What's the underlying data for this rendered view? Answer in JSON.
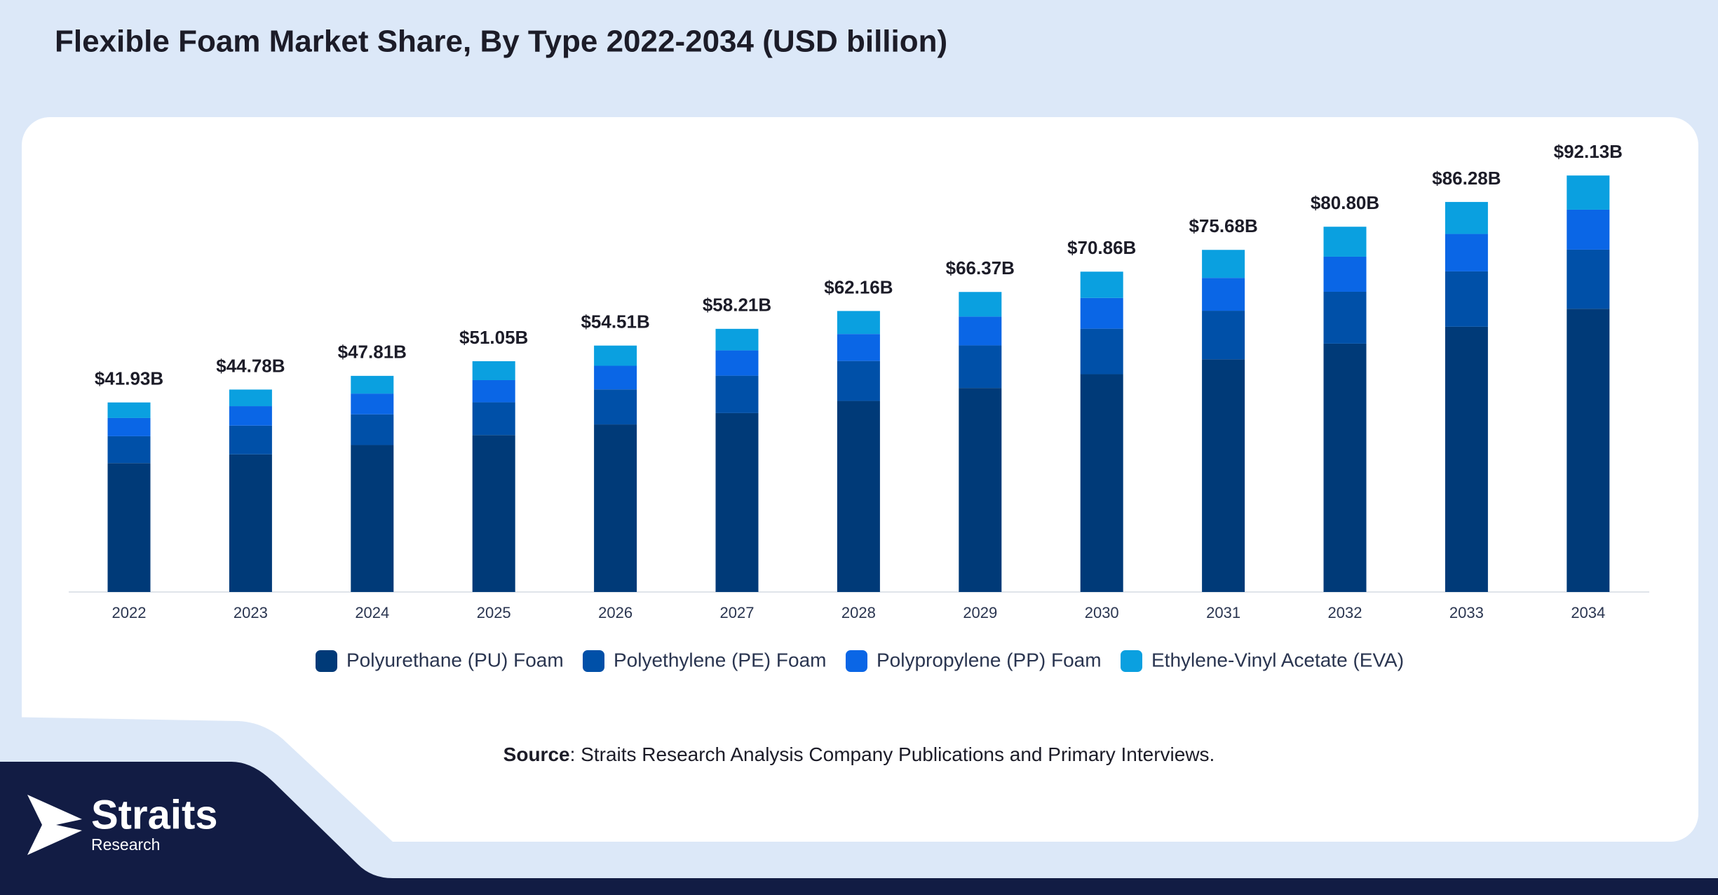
{
  "chart_data": {
    "type": "stacked-bar",
    "title": "Flexible Foam Market Share, By Type 2022-2034 (USD billion)",
    "categories": [
      "2022",
      "2023",
      "2024",
      "2025",
      "2026",
      "2027",
      "2028",
      "2029",
      "2030",
      "2031",
      "2032",
      "2033",
      "2034"
    ],
    "series": [
      {
        "name": "Polyurethane (PU) Foam",
        "color": "#003a78",
        "values": [
          28.51,
          30.45,
          32.51,
          34.71,
          37.07,
          39.58,
          42.27,
          45.13,
          48.18,
          51.46,
          54.94,
          58.67,
          62.65
        ]
      },
      {
        "name": "Polyethylene (PE) Foam",
        "color": "#0050a8",
        "values": [
          5.95,
          6.36,
          6.79,
          7.25,
          7.74,
          8.27,
          8.83,
          9.42,
          10.06,
          10.75,
          11.47,
          12.25,
          13.08
        ]
      },
      {
        "name": "Polypropylene (PP) Foam",
        "color": "#0a66e6",
        "values": [
          4.03,
          4.3,
          4.59,
          4.9,
          5.23,
          5.59,
          5.97,
          6.37,
          6.8,
          7.27,
          7.76,
          8.28,
          8.84
        ]
      },
      {
        "name": "Ethylene-Vinyl Acetate (EVA)",
        "color": "#0aa0e0",
        "values": [
          3.44,
          3.67,
          3.92,
          4.19,
          4.47,
          4.77,
          5.09,
          5.45,
          5.82,
          6.2,
          6.63,
          7.08,
          7.56
        ]
      }
    ],
    "totals": {
      "values": [
        41.93,
        44.78,
        47.81,
        51.05,
        54.51,
        58.21,
        62.16,
        66.37,
        70.86,
        75.68,
        80.8,
        86.28,
        92.13
      ],
      "value_labels": [
        "$41.93B",
        "$44.78B",
        "$47.81B",
        "$51.05B",
        "$54.51B",
        "$58.21B",
        "$62.16B",
        "$66.37B",
        "$70.86B",
        "$75.68B",
        "$80.80B",
        "$86.28B",
        "$92.13B"
      ]
    },
    "legend": "bottom"
  },
  "source": {
    "label": "Source",
    "text": ": Straits Research Analysis Company Publications and Primary Interviews."
  },
  "logo": {
    "name": "Straits",
    "sub": "Research"
  }
}
